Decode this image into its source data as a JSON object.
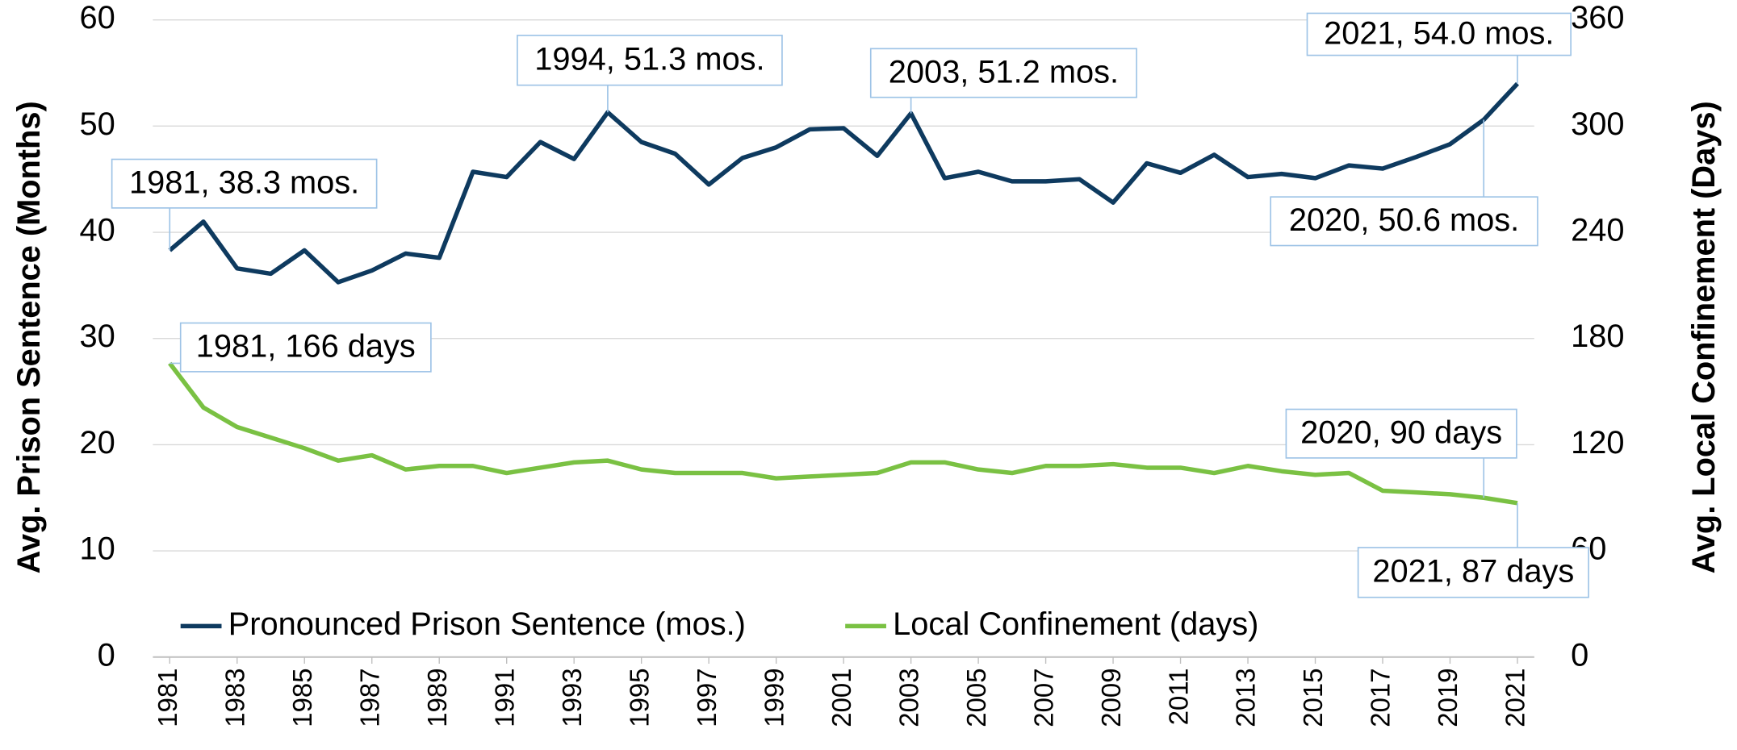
{
  "chart_data": {
    "type": "line",
    "x": [
      1981,
      1982,
      1983,
      1984,
      1985,
      1986,
      1987,
      1988,
      1989,
      1990,
      1991,
      1992,
      1993,
      1994,
      1995,
      1996,
      1997,
      1998,
      1999,
      2000,
      2001,
      2002,
      2003,
      2004,
      2005,
      2006,
      2007,
      2008,
      2009,
      2010,
      2011,
      2012,
      2013,
      2014,
      2015,
      2016,
      2017,
      2018,
      2019,
      2020,
      2021
    ],
    "xlim": [
      1980.5,
      2021.5
    ],
    "xticks": [
      1981,
      1983,
      1985,
      1987,
      1989,
      1991,
      1993,
      1995,
      1997,
      1999,
      2001,
      2003,
      2005,
      2007,
      2009,
      2011,
      2013,
      2015,
      2017,
      2019,
      2021
    ],
    "ylabel": "Avg. Prison Sentence (Months)",
    "y2label": "Avg. Local Confinement (Days)",
    "ylim": [
      0,
      60
    ],
    "yticks": [
      0,
      10,
      20,
      30,
      40,
      50,
      60
    ],
    "y2lim": [
      0,
      360
    ],
    "y2ticks": [
      0,
      60,
      120,
      180,
      240,
      300,
      360
    ],
    "grid": true,
    "legend": "bottom-left",
    "series": [
      {
        "name": "Pronounced Prison Sentence (mos.)",
        "color": "#0e3a5f",
        "values": [
          38.3,
          41.0,
          36.6,
          36.1,
          38.3,
          35.3,
          36.4,
          38.0,
          37.6,
          45.7,
          45.2,
          48.5,
          46.9,
          51.3,
          48.5,
          47.4,
          44.5,
          47.0,
          48.0,
          49.7,
          49.8,
          47.2,
          51.2,
          45.1,
          45.7,
          44.8,
          44.8,
          45.0,
          42.8,
          46.5,
          45.6,
          47.3,
          45.2,
          45.5,
          45.1,
          46.3,
          46.0,
          47.1,
          48.3,
          50.6,
          54.0
        ]
      },
      {
        "name": "Local Confinement (days)",
        "color": "#7ac143",
        "axis": "y2",
        "values": [
          166,
          141,
          130,
          124,
          118,
          111,
          114,
          106,
          108,
          108,
          104,
          107,
          110,
          111,
          106,
          104,
          104,
          104,
          101,
          102,
          103,
          104,
          110,
          110,
          106,
          104,
          108,
          108,
          109,
          107,
          107,
          104,
          108,
          105,
          103,
          104,
          94,
          93,
          92,
          90,
          87
        ]
      }
    ],
    "annotations": [
      "2021, 54.0 mos.",
      "1994, 51.3 mos.",
      "2003, 51.2 mos.",
      "1981, 38.3 mos.",
      "2020, 50.6 mos.",
      "1981, 166 days",
      "2020, 90 days",
      "2021, 87 days"
    ]
  }
}
